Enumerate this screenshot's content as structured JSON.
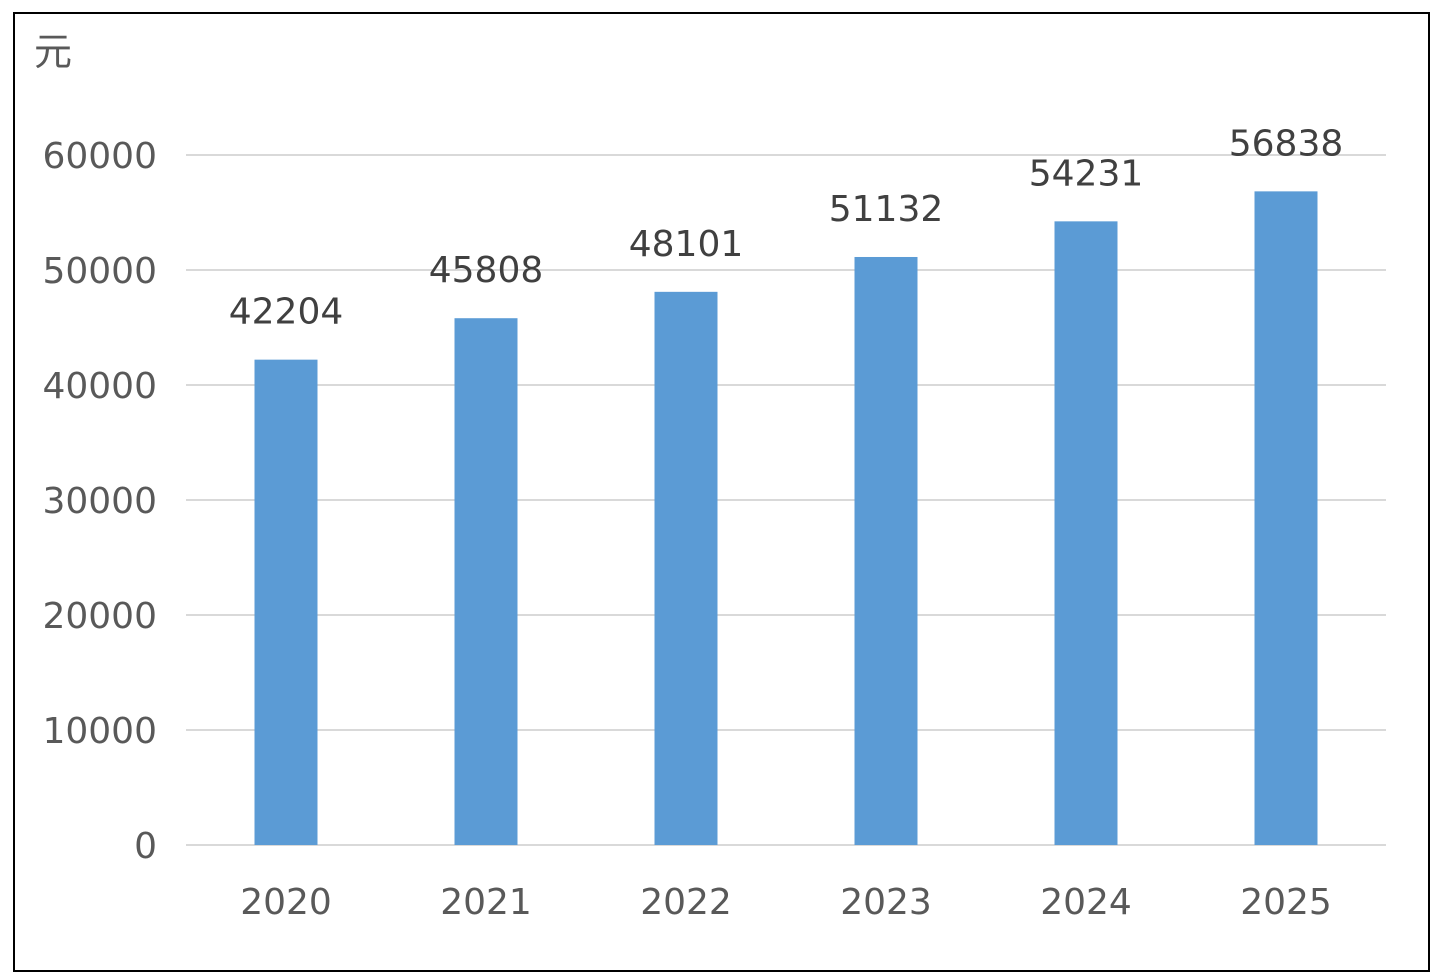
{
  "chart_data": {
    "type": "bar",
    "unit": "元",
    "categories": [
      "2020",
      "2021",
      "2022",
      "2023",
      "2024",
      "2025"
    ],
    "values": [
      42204,
      45808,
      48101,
      51132,
      54231,
      56838
    ],
    "data_labels": [
      "42204",
      "45808",
      "48101",
      "51132",
      "54231",
      "56838"
    ],
    "ylim": [
      0,
      60000
    ],
    "yticks": [
      0,
      10000,
      20000,
      30000,
      40000,
      50000,
      60000
    ],
    "ytick_labels": [
      "0",
      "10000",
      "20000",
      "30000",
      "40000",
      "50000",
      "60000"
    ],
    "grid": true,
    "legend": "none",
    "colors": {
      "bar": "#5b9bd5",
      "grid": "#d9d9d9",
      "axis_text": "#595959",
      "label_text": "#404040"
    }
  }
}
